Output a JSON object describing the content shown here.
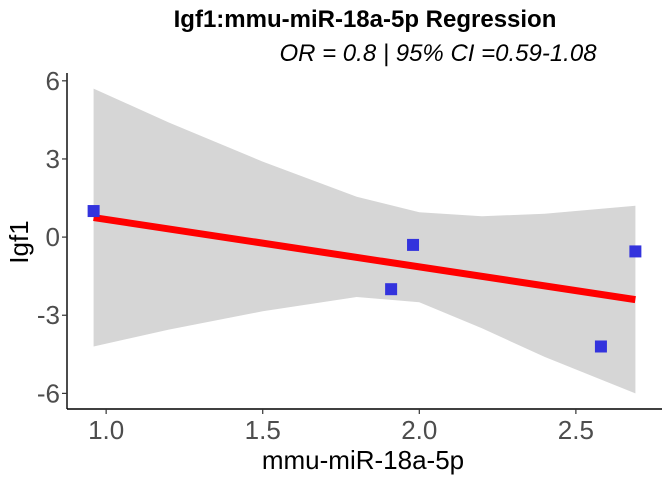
{
  "chart_data": {
    "type": "scatter",
    "title": "Igf1:mmu-miR-18a-5p Regression",
    "subtitle": "OR = 0.8 | 95% CI =0.59-1.08",
    "xlabel": "mmu-miR-18a-5p",
    "ylabel": "Igf1",
    "xlim": [
      0.875,
      2.775
    ],
    "ylim": [
      -6.6,
      6.3
    ],
    "x_ticks": [
      1.0,
      1.5,
      2.0,
      2.5
    ],
    "x_tick_labels": [
      "1.0",
      "1.5",
      "2.0",
      "2.5"
    ],
    "y_ticks": [
      6,
      3,
      0,
      -3,
      -6
    ],
    "y_tick_labels": [
      "6",
      "3",
      "0",
      "-3",
      "-6"
    ],
    "grid": false,
    "points": [
      {
        "x": 0.96,
        "y": 1.0
      },
      {
        "x": 1.91,
        "y": -2.0
      },
      {
        "x": 1.98,
        "y": -0.3
      },
      {
        "x": 2.58,
        "y": -4.2
      },
      {
        "x": 2.69,
        "y": -0.55
      }
    ],
    "regression_line": [
      {
        "x": 0.96,
        "y": 0.75
      },
      {
        "x": 2.69,
        "y": -2.4
      }
    ],
    "confidence_band": [
      {
        "x": 0.96,
        "lower": -4.2,
        "upper": 5.7
      },
      {
        "x": 1.2,
        "lower": -3.55,
        "upper": 4.4
      },
      {
        "x": 1.5,
        "lower": -2.85,
        "upper": 2.9
      },
      {
        "x": 1.8,
        "lower": -2.3,
        "upper": 1.55
      },
      {
        "x": 2.0,
        "lower": -2.5,
        "upper": 0.95
      },
      {
        "x": 2.2,
        "lower": -3.5,
        "upper": 0.8
      },
      {
        "x": 2.4,
        "lower": -4.6,
        "upper": 0.9
      },
      {
        "x": 2.69,
        "lower": -6.0,
        "upper": 1.2
      }
    ],
    "colors": {
      "points": "#3333dd",
      "line": "#ff0000",
      "band": "#d6d6d6",
      "axis": "#000000",
      "tick_text": "#4d4d4d"
    }
  }
}
